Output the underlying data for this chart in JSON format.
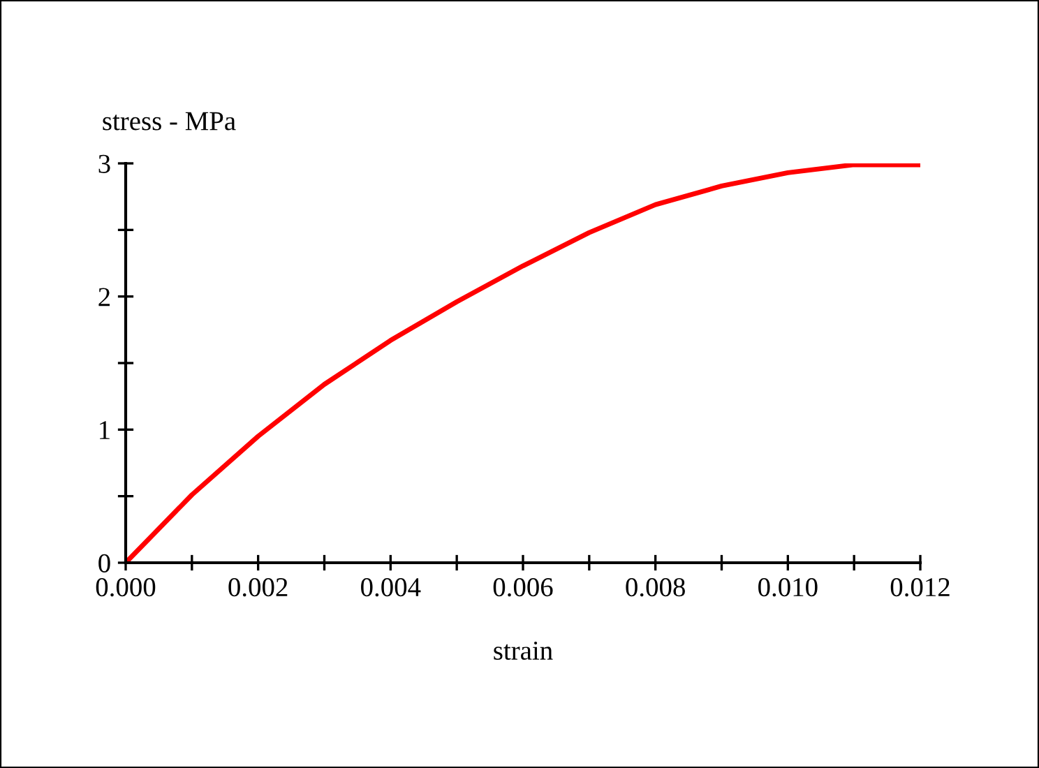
{
  "chart_data": {
    "type": "line",
    "xlabel": "strain",
    "ylabel": "stress - MPa",
    "x": [
      0,
      0.001,
      0.002,
      0.003,
      0.004,
      0.005,
      0.006,
      0.007,
      0.008,
      0.009,
      0.01,
      0.011,
      0.012
    ],
    "series": [
      {
        "color": "#ff0000",
        "values": [
          0,
          0.51,
          0.95,
          1.34,
          1.67,
          1.96,
          2.23,
          2.48,
          2.69,
          2.83,
          2.93,
          2.99,
          2.99
        ]
      }
    ],
    "xlim": [
      0,
      0.012
    ],
    "ylim": [
      0,
      3
    ],
    "xticks": [
      {
        "value": 0,
        "label": "0.000"
      },
      {
        "value": 0.001,
        "label": null
      },
      {
        "value": 0.002,
        "label": "0.002"
      },
      {
        "value": 0.003,
        "label": null
      },
      {
        "value": 0.004,
        "label": "0.004"
      },
      {
        "value": 0.005,
        "label": null
      },
      {
        "value": 0.006,
        "label": "0.006"
      },
      {
        "value": 0.007,
        "label": null
      },
      {
        "value": 0.008,
        "label": "0.008"
      },
      {
        "value": 0.009,
        "label": null
      },
      {
        "value": 0.01,
        "label": "0.010"
      },
      {
        "value": 0.011,
        "label": null
      },
      {
        "value": 0.012,
        "label": "0.012"
      }
    ],
    "yticks": [
      0,
      {
        "value": 0.5,
        "label": null
      },
      1,
      {
        "value": 1.5,
        "label": null
      },
      2,
      {
        "value": 2.5,
        "label": null
      },
      3
    ],
    "grid": false,
    "legend": false,
    "marker": "none",
    "line_style": "solid"
  }
}
